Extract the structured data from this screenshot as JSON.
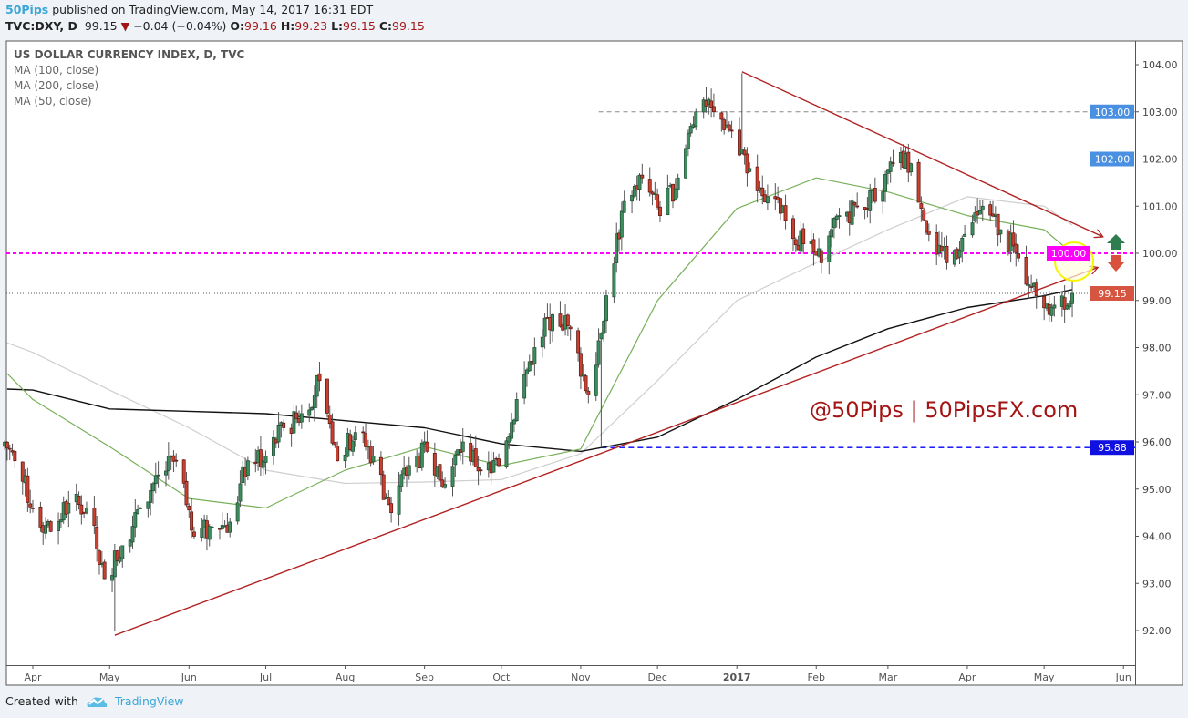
{
  "header": {
    "author": "50Pips",
    "published": "published on TradingView.com, May 14, 2017 16:31 EDT",
    "symbol": "TVC:DXY, D",
    "last": "99.15",
    "change": "−0.04 (−0.04%)",
    "open_label": "O:",
    "open": "99.16",
    "high_label": "H:",
    "high": "99.23",
    "low_label": "L:",
    "low": "99.15",
    "close_label": "C:",
    "close": "99.15",
    "direction_icon": "down-triangle-icon"
  },
  "legend": {
    "title": "US DOLLAR CURRENCY INDEX, D, TVC",
    "studies": [
      "MA (100, close)",
      "MA (200, close)",
      "MA (50, close)"
    ]
  },
  "watermark": "@50Pips | 50PipsFX.com",
  "footer": {
    "created_with": "Created with",
    "brand": "TradingView",
    "logo_icon": "tradingview-cloud-icon"
  },
  "colors": {
    "up": "#3c8c5e",
    "down": "#c9402e",
    "ma50": "#77b05a",
    "ma100": "#cfcfcf",
    "ma200": "#111111",
    "trendline": "#b22222",
    "level_100": "#ff00ff",
    "level_95_88": "#0000ff",
    "level_gray": "#888888",
    "badge_blue": "#4a90e2",
    "badge_price": "#d65540",
    "highlight_circle": "#f5f500",
    "arrow_up": "#2e7d4f",
    "arrow_down": "#d9503c",
    "watermark": "#a31515"
  },
  "chart_data": {
    "type": "candlestick",
    "title": "US DOLLAR CURRENCY INDEX, D, TVC",
    "x_axis": {
      "type": "date",
      "range": [
        "2016-03-21",
        "2017-06-05"
      ],
      "tick_labels": [
        {
          "date": "2016-04-01",
          "label": "Apr"
        },
        {
          "date": "2016-05-01",
          "label": "May"
        },
        {
          "date": "2016-06-01",
          "label": "Jun"
        },
        {
          "date": "2016-07-01",
          "label": "Jul"
        },
        {
          "date": "2016-08-01",
          "label": "Aug"
        },
        {
          "date": "2016-09-01",
          "label": "Sep"
        },
        {
          "date": "2016-10-01",
          "label": "Oct"
        },
        {
          "date": "2016-11-01",
          "label": "Nov"
        },
        {
          "date": "2016-12-01",
          "label": "Dec"
        },
        {
          "date": "2017-01-01",
          "label": "2017"
        },
        {
          "date": "2017-02-01",
          "label": "Feb"
        },
        {
          "date": "2017-03-01",
          "label": "Mar"
        },
        {
          "date": "2017-04-01",
          "label": "Apr"
        },
        {
          "date": "2017-05-01",
          "label": "May"
        },
        {
          "date": "2017-06-01",
          "label": "Jun"
        }
      ]
    },
    "y_axis": {
      "range": [
        91.5,
        104.5
      ],
      "position": "right",
      "tick_labels": [
        "104.00",
        "103.00",
        "102.00",
        "101.00",
        "100.00",
        "99.00",
        "98.00",
        "97.00",
        "96.00",
        "95.00",
        "94.00",
        "93.00",
        "92.00"
      ]
    },
    "weekly_closes": [
      {
        "date": "2016-03-25",
        "close": 95.6
      },
      {
        "date": "2016-04-01",
        "close": 94.6
      },
      {
        "date": "2016-04-08",
        "close": 94.1
      },
      {
        "date": "2016-04-15",
        "close": 94.7
      },
      {
        "date": "2016-04-22",
        "close": 94.6
      },
      {
        "date": "2016-04-29",
        "close": 93.1
      },
      {
        "date": "2016-05-06",
        "close": 93.8
      },
      {
        "date": "2016-05-13",
        "close": 94.6
      },
      {
        "date": "2016-05-20",
        "close": 95.3
      },
      {
        "date": "2016-05-27",
        "close": 95.6
      },
      {
        "date": "2016-06-03",
        "close": 94.0
      },
      {
        "date": "2016-06-10",
        "close": 94.2
      },
      {
        "date": "2016-06-17",
        "close": 94.3
      },
      {
        "date": "2016-06-24",
        "close": 95.6
      },
      {
        "date": "2016-07-01",
        "close": 95.7
      },
      {
        "date": "2016-07-08",
        "close": 96.3
      },
      {
        "date": "2016-07-15",
        "close": 96.6
      },
      {
        "date": "2016-07-22",
        "close": 97.3
      },
      {
        "date": "2016-07-29",
        "close": 95.6
      },
      {
        "date": "2016-08-05",
        "close": 96.2
      },
      {
        "date": "2016-08-12",
        "close": 95.7
      },
      {
        "date": "2016-08-19",
        "close": 94.5
      },
      {
        "date": "2016-08-26",
        "close": 95.5
      },
      {
        "date": "2016-09-02",
        "close": 95.8
      },
      {
        "date": "2016-09-09",
        "close": 95.1
      },
      {
        "date": "2016-09-16",
        "close": 96.0
      },
      {
        "date": "2016-09-23",
        "close": 95.4
      },
      {
        "date": "2016-09-30",
        "close": 95.5
      },
      {
        "date": "2016-10-07",
        "close": 96.9
      },
      {
        "date": "2016-10-14",
        "close": 98.0
      },
      {
        "date": "2016-10-21",
        "close": 98.7
      },
      {
        "date": "2016-10-28",
        "close": 98.4
      },
      {
        "date": "2016-11-04",
        "close": 97.0
      },
      {
        "date": "2016-11-11",
        "close": 99.1
      },
      {
        "date": "2016-11-18",
        "close": 101.1
      },
      {
        "date": "2016-11-25",
        "close": 101.6
      },
      {
        "date": "2016-12-02",
        "close": 100.8
      },
      {
        "date": "2016-12-09",
        "close": 101.6
      },
      {
        "date": "2016-12-16",
        "close": 103.0
      },
      {
        "date": "2016-12-23",
        "close": 103.0
      },
      {
        "date": "2016-12-30",
        "close": 102.6
      },
      {
        "date": "2017-01-06",
        "close": 101.8
      },
      {
        "date": "2017-01-13",
        "close": 101.2
      },
      {
        "date": "2017-01-20",
        "close": 100.7
      },
      {
        "date": "2017-01-27",
        "close": 100.2
      },
      {
        "date": "2017-02-03",
        "close": 99.8
      },
      {
        "date": "2017-02-10",
        "close": 100.8
      },
      {
        "date": "2017-02-17",
        "close": 101.0
      },
      {
        "date": "2017-02-24",
        "close": 101.1
      },
      {
        "date": "2017-03-03",
        "close": 101.9
      },
      {
        "date": "2017-03-10",
        "close": 101.9
      },
      {
        "date": "2017-03-17",
        "close": 100.4
      },
      {
        "date": "2017-03-24",
        "close": 99.8
      },
      {
        "date": "2017-03-31",
        "close": 100.4
      },
      {
        "date": "2017-04-07",
        "close": 101.0
      },
      {
        "date": "2017-04-14",
        "close": 100.5
      },
      {
        "date": "2017-04-21",
        "close": 99.9
      },
      {
        "date": "2017-04-28",
        "close": 99.1
      },
      {
        "date": "2017-05-05",
        "close": 98.9
      },
      {
        "date": "2017-05-12",
        "close": 99.15
      }
    ],
    "extremes": [
      {
        "date": "2016-05-03",
        "low": 92.0
      },
      {
        "date": "2016-11-09",
        "low": 95.88
      },
      {
        "date": "2017-01-03",
        "high": 103.82
      }
    ],
    "moving_averages": {
      "dates": [
        "2016-03-22",
        "2016-04-01",
        "2016-05-01",
        "2016-06-01",
        "2016-07-01",
        "2016-08-01",
        "2016-09-01",
        "2016-10-01",
        "2016-11-01",
        "2016-12-01",
        "2017-01-01",
        "2017-02-01",
        "2017-03-01",
        "2017-04-01",
        "2017-05-01",
        "2017-05-12"
      ],
      "series": [
        {
          "name": "MA (100, close)",
          "color": "#cfcfcf",
          "values": [
            98.1,
            97.9,
            97.1,
            96.3,
            95.4,
            95.12,
            95.15,
            95.2,
            95.75,
            97.3,
            99.0,
            99.8,
            100.5,
            101.2,
            101.0,
            100.6
          ]
        },
        {
          "name": "MA (200, close)",
          "color": "#111111",
          "values": [
            97.12,
            97.1,
            96.7,
            96.65,
            96.6,
            96.45,
            96.3,
            95.96,
            95.8,
            96.1,
            96.9,
            97.8,
            98.4,
            98.85,
            99.1,
            99.23
          ]
        },
        {
          "name": "MA (50, close)",
          "color": "#77b05a",
          "values": [
            97.45,
            96.9,
            95.9,
            94.8,
            94.6,
            95.4,
            95.9,
            95.5,
            95.85,
            99.0,
            100.95,
            101.6,
            101.3,
            100.8,
            100.5,
            100.0
          ]
        }
      ]
    },
    "trendlines": [
      {
        "name": "support",
        "from": {
          "date": "2016-05-03",
          "price": 91.9
        },
        "to": {
          "date": "2017-05-22",
          "price": 99.7
        },
        "arrow": true
      },
      {
        "name": "resistance",
        "from": {
          "date": "2017-01-03",
          "price": 103.85
        },
        "to": {
          "date": "2017-05-24",
          "price": 100.35
        },
        "arrow": true
      }
    ],
    "levels": [
      {
        "price": 103.0,
        "label": "103.00",
        "style": "dashed",
        "from": "2016-11-08"
      },
      {
        "price": 102.0,
        "label": "102.00",
        "style": "dashed",
        "from": "2016-11-08"
      },
      {
        "price": 100.0,
        "label": "100.00",
        "style": "dotted-magenta"
      },
      {
        "price": 95.88,
        "label": "95.88",
        "style": "dashed-blue",
        "from": "2016-11-09"
      },
      {
        "price": 99.15,
        "label": "99.15",
        "style": "last-price"
      }
    ],
    "highlight": {
      "date": "2017-05-10",
      "price": 99.75
    },
    "signal_icons": [
      "up-arrow-icon",
      "down-arrow-icon"
    ]
  }
}
